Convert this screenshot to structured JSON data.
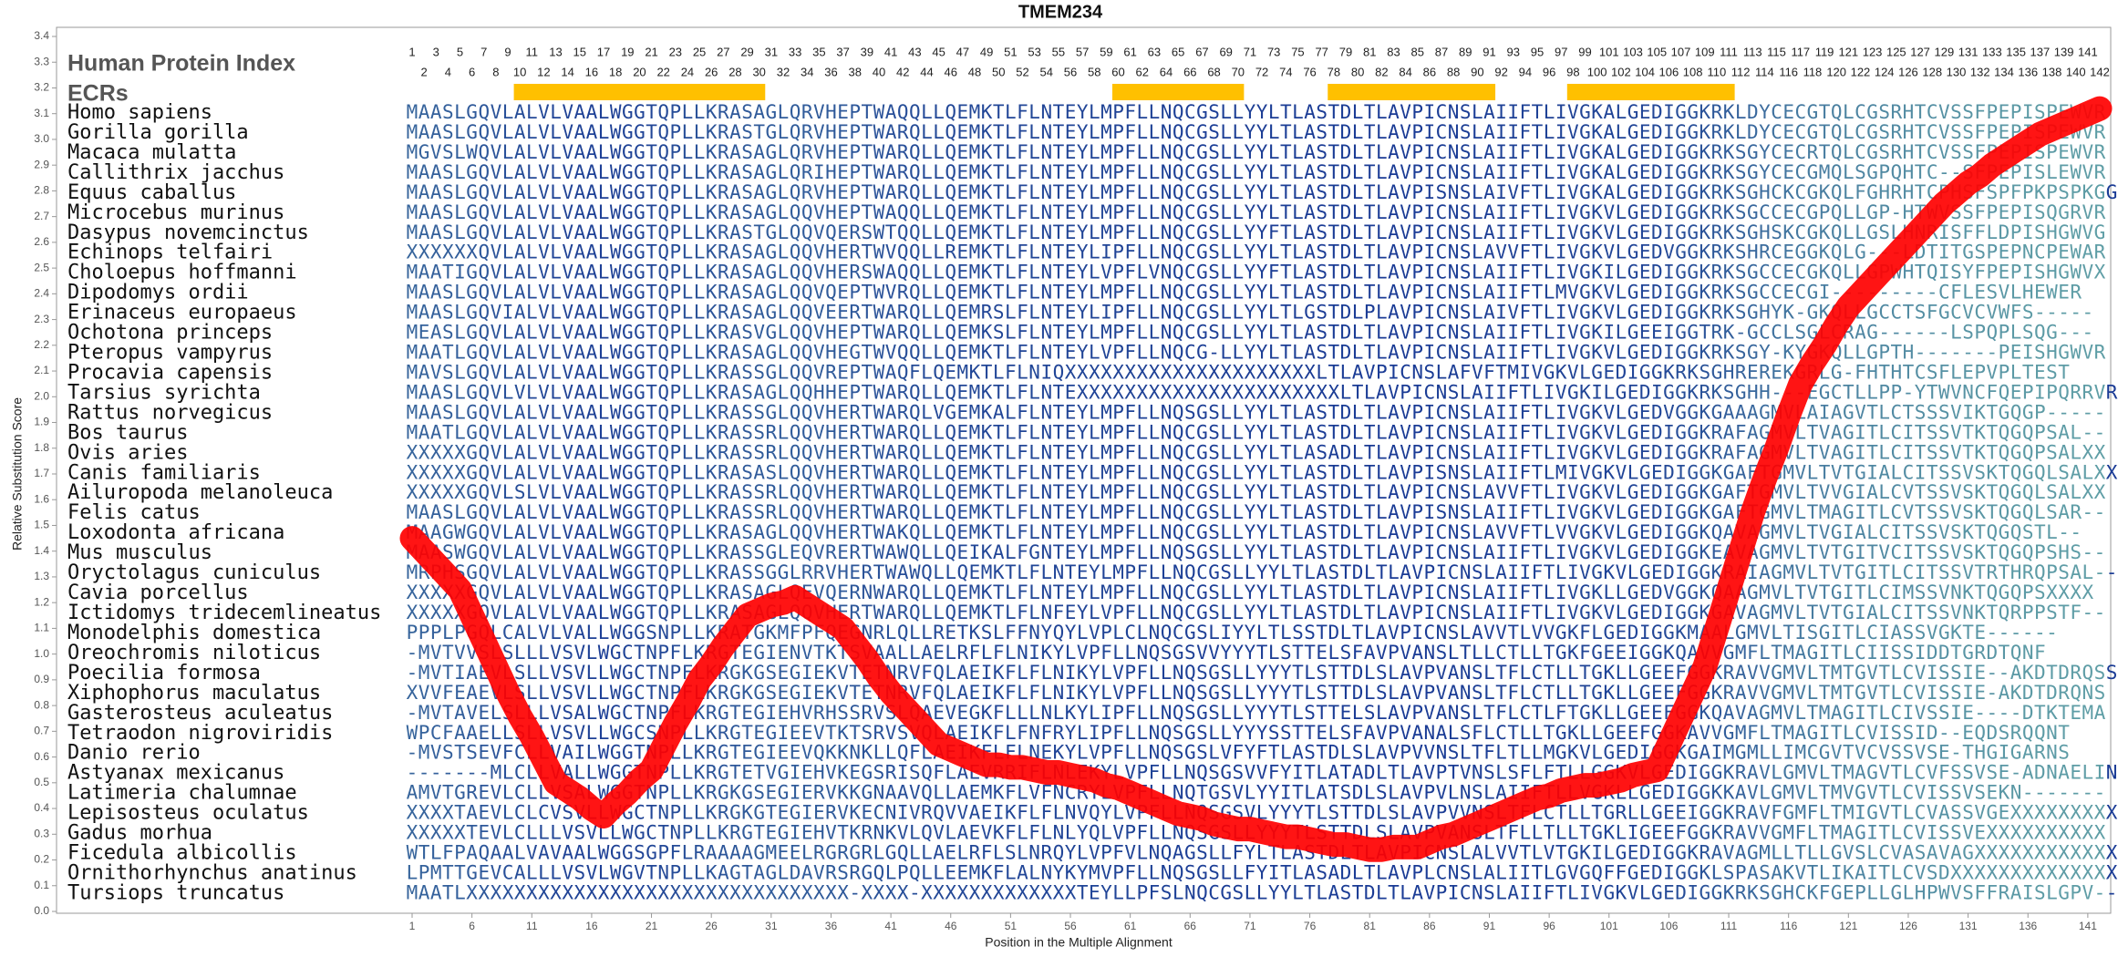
{
  "chart_data": {
    "type": "line",
    "title": "TMEM234",
    "x_label": "Position in the Multiple Alignment",
    "y_label": "Relative Substitution Score",
    "index_label": "Human Protein Index",
    "ecr_label": "ECRs",
    "color": "#ff0000",
    "ecr_color": "#ffc000",
    "residue_colors": [
      "#1a3b95",
      "#5f9ea6"
    ],
    "xlim": [
      1,
      142
    ],
    "ylim": [
      0,
      3.4
    ],
    "xticks": [
      1,
      6,
      11,
      16,
      21,
      26,
      31,
      36,
      41,
      46,
      51,
      56,
      61,
      66,
      71,
      76,
      81,
      86,
      91,
      96,
      101,
      106,
      111,
      116,
      121,
      126,
      131,
      136,
      141
    ],
    "yticks": [
      {
        "value": 0,
        "label": "0.0"
      },
      0.1,
      0.2,
      0.3,
      0.4,
      0.5,
      0.6,
      0.7,
      0.8,
      0.9,
      {
        "value": 1,
        "label": "1.0"
      },
      1.1,
      1.2,
      1.3,
      1.4,
      1.5,
      1.6,
      1.7,
      1.8,
      1.9,
      {
        "value": 2,
        "label": "2.0"
      },
      2.1,
      2.2,
      2.3,
      2.4,
      2.5,
      2.6,
      2.7,
      2.8,
      2.9,
      {
        "value": 3,
        "label": "3.0"
      },
      3.1,
      3.2,
      3.3,
      3.4
    ],
    "x": [
      1,
      2,
      3,
      4,
      5,
      6,
      7,
      8,
      9,
      10,
      11,
      12,
      13,
      14,
      15,
      16,
      17,
      18,
      19,
      20,
      21,
      22,
      23,
      24,
      25,
      26,
      27,
      28,
      29,
      30,
      31,
      32,
      33,
      34,
      35,
      36,
      37,
      38,
      39,
      40,
      41,
      42,
      43,
      44,
      45,
      46,
      47,
      48,
      49,
      50,
      51,
      52,
      53,
      54,
      55,
      56,
      57,
      58,
      59,
      60,
      61,
      62,
      63,
      64,
      65,
      66,
      67,
      68,
      69,
      70,
      71,
      72,
      73,
      74,
      75,
      76,
      77,
      78,
      79,
      80,
      81,
      82,
      83,
      84,
      85,
      86,
      87,
      88,
      89,
      90,
      91,
      92,
      93,
      94,
      95,
      96,
      97,
      98,
      99,
      100,
      101,
      102,
      103,
      104,
      105,
      106,
      107,
      108,
      109,
      110,
      111,
      112,
      113,
      114,
      115,
      116,
      117,
      118,
      119,
      120,
      121,
      122,
      123,
      124,
      125,
      126,
      127,
      128,
      129,
      130,
      131,
      132,
      133,
      134,
      135,
      136,
      137,
      138,
      139,
      140,
      141,
      142
    ],
    "values": [
      1.45,
      1.4,
      1.35,
      1.3,
      1.25,
      1.15,
      1.05,
      0.95,
      0.85,
      0.76,
      0.68,
      0.59,
      0.5,
      0.47,
      0.44,
      0.4,
      0.37,
      0.42,
      0.46,
      0.51,
      0.55,
      0.64,
      0.73,
      0.81,
      0.9,
      0.96,
      1.03,
      1.09,
      1.15,
      1.17,
      1.19,
      1.2,
      1.22,
      1.19,
      1.16,
      1.13,
      1.1,
      1.04,
      0.98,
      0.91,
      0.85,
      0.8,
      0.75,
      0.7,
      0.65,
      0.63,
      0.61,
      0.59,
      0.57,
      0.57,
      0.56,
      0.56,
      0.55,
      0.54,
      0.54,
      0.53,
      0.52,
      0.51,
      0.49,
      0.48,
      0.46,
      0.44,
      0.42,
      0.4,
      0.38,
      0.37,
      0.36,
      0.34,
      0.33,
      0.32,
      0.32,
      0.31,
      0.3,
      0.29,
      0.29,
      0.28,
      0.27,
      0.26,
      0.26,
      0.25,
      0.24,
      0.24,
      0.25,
      0.25,
      0.25,
      0.27,
      0.29,
      0.3,
      0.32,
      0.34,
      0.36,
      0.38,
      0.4,
      0.42,
      0.44,
      0.45,
      0.47,
      0.48,
      0.49,
      0.49,
      0.5,
      0.51,
      0.53,
      0.54,
      0.55,
      0.65,
      0.75,
      0.85,
      0.95,
      1.1,
      1.25,
      1.4,
      1.55,
      1.68,
      1.8,
      1.93,
      2.05,
      2.13,
      2.2,
      2.28,
      2.35,
      2.4,
      2.45,
      2.5,
      2.55,
      2.6,
      2.65,
      2.7,
      2.75,
      2.79,
      2.83,
      2.86,
      2.9,
      2.93,
      2.96,
      2.99,
      3.02,
      3.04,
      3.06,
      3.08,
      3.1,
      3.12
    ],
    "ecrs": [
      {
        "start": 10,
        "end": 30
      },
      {
        "start": 60,
        "end": 70
      },
      {
        "start": 78,
        "end": 91
      },
      {
        "start": 98,
        "end": 111
      }
    ],
    "species": [
      "Homo sapiens",
      "Gorilla gorilla",
      "Macaca mulatta",
      "Callithrix jacchus",
      "Equus caballus",
      "Microcebus murinus",
      "Dasypus novemcinctus",
      "Echinops telfairi",
      "Choloepus hoffmanni",
      "Dipodomys ordii",
      "Erinaceus europaeus",
      "Ochotona princeps",
      "Pteropus vampyrus",
      "Procavia capensis",
      "Tarsius syrichta",
      "Rattus norvegicus",
      "Bos taurus",
      "Ovis aries",
      "Canis familiaris",
      "Ailuropoda melanoleuca",
      "Felis catus",
      "Loxodonta africana",
      "Mus musculus",
      "Oryctolagus cuniculus",
      "Cavia porcellus",
      "Ictidomys tridecemlineatus",
      "Monodelphis domestica",
      "Oreochromis niloticus",
      "Poecilia formosa",
      "Xiphophorus maculatus",
      "Gasterosteus aculeatus",
      "Tetraodon nigroviridis",
      "Danio rerio",
      "Astyanax mexicanus",
      "Latimeria chalumnae",
      "Lepisosteus oculatus",
      "Gadus morhua",
      "Ficedula albicollis",
      "Ornithorhynchus anatinus",
      "Tursiops truncatus"
    ],
    "sequences": [
      "MAASLGQVLALVLVAALWGGTQPLLKRASAGLQRVHEPTWAQQLLQEMKTLFLNTEYLMPFLLNQCGSLLYYLTLASTDLTLAVPICNSLAIIFTLIVGKALGEDIGGKRKLDYCECGTQLCGSRHTCVSSFPEPISPEWVR",
      "MAASLGQVLALVLVAALWGGTQPLLKRASTGLQRVHEPTWARQLLQEMKTLFLNTEYLMPFLLNQCGSLLYYLTLASTDLTLAVPICNSLAIIFTLIVGKALGEDIGGKRKLDYCECGTQLCGSRHTCVSSFPEPISPEWVR",
      "MGVSLWQVLALVLVAALWGGTQPLLKRASAGLQRVHEPTWARQLLQEMKTLFLNTEYLMPFLLNQCGSLLYYLTLASTDLTLAVPICNSLAIIFTLIVGKALGEDIGGKRKSGYCECRTQLCGSRHTCVSSFPEPISPEWVR",
      "MAASLGQVLALVLVAALWGGTQPLLKRASAGLQRIHEPTWARQLLQEMKTLFLNTEYLMPFLLNQCGSLLYYLTLASTDLTLAVPICNSLAIIFTLIVGKALGEDIGGKRKSGYCECGMQLSGPQHTC--SFPEPISLEWVR",
      "MAASLGQVLALVLVAALWGGTQPLLKRASAGLQRVHEPTWARQLLQEMKTLFLNTEYLMPFLLNQCGSLLYYLTLASTDLTLAVPISNSLAIVFTLIVGKALGEDIGGKRKSGHCKCGKQLFGHRHTCPHSFSPFPKPSPKGGG",
      "MAASLGQVLALVLVAALWGGTQPLLKRASAGLQQVHEPTWAQQLLQEMKTLFLNTEYLMPFLLNQCGSLLYYLTLASTDLTLAVPICNSLAIIFTLIVGKVLGEDIGGKRKSGCCECGPQLLGP-HTWVSSFPEPISQGRVR",
      "MAASLGQVLALVLVAALWGGTQPLLKRASTGLQQVQERSWTQQLLQEMKTLFLNTEYLMPFLLNQCGSLLYYFTLASTDLTLAVPICNSLAIIFTLIVGKVLGEDIGGKRKSGHSKCGKQLLGSLHNRISFFLDPISHGWVG",
      "XXXXXXQVLALVLVAALWGGTQPLLKRASAGLQQVHERTWVQQLLREMKTLFLNTEYLIPFLLNQCGSLLYYLTLASTDLTLAVPICNSLAVVFTLIVGKVLGEDVGGKRKSHRCEGGKQLG---LDTITGSPEPNCPEWAR",
      "MAATIGQVLALVLVAALWGGTQPLLKRASAGLQQVHERSWAQQLLQEMKTLFLNTEYLVPFLVNQCGSLLYYFTLASTDLTLAVPICNSLAIIFTLIVGKILGEDIGGKRKSGCCECGKQLLGPWHTQISYFPEPISHGWVX",
      "MAASLGQVLALVLVAALWGGTQPLLKRASAGLQQVQEPTWVRQLLQEMKTLFLNTEYLMPFLLNQCGSLLYYLTLASTDLTLAVPICNSLAIIFTLMVGKVLGEDIGGKRKSGCCECGI---------CFLESVLHEWER",
      "MAASLGQVIALVLVAALWGGTQPLLKRASAGLQQVEERTWARQLLQEMRSLFLNTEYLIPFLLNQCGSLLYYLTLGSTDLPLAVPICNSLAIVFTLIVGKVLGEDIGGKRKSGHYK-GKQLLGCCTSFGCVCVWFS-----",
      "MEASLGQVLALVLVAALWGGTQPLLKRASVGLQQVHEPTWARQLLQEMKSLFLNTEYLMPFLLNQCGSLLYYLTLASTDLTLAVPICNSLAIIFTLIVGKILGEEIGGTRK-GCCLSGLCRAG------LSPQPLSQG---",
      "MAATLGQVLALVLVAALWGGTQPLLKRASAGLQQVHEGTWVQQLLQEMKTLFLNTEYLVPFLLNQCG-LLYYLTLASTDLTLAVPICNSLAIIFTLIVGKVLGEDIGGKRKSGY-KYGKQLLGPTH-------PEISHGWVR",
      "MAVSLGQVLALVLVAALWGGTQPLLKRASSGLQQVREPTWAQFLQEMKTLFLNIQXXXXXXXXXXXXXXXXXXXXXLTLAVPICNSLAFVFTMIVGKVLGEDIGGKRKSGHREREKGRLG-FHTHTCSFLEPVPLTEST",
      "MAASLGQVLVLVLVAALWGGTQPLLKRASAGLQQHHEPTWARQLLQEMKTLFLNTEXXXXXXXXXXXXXXXXXXXXXXLTLAVPICNSLAIIFTLIVGKILGEDIGGKRKSGHH---EGCTLLPP-YTWVNCFQEPIPQRRVR",
      "MAASLGQVLALVLVAALWGGTQPLLKRASSGLQQVHERTWARQLVGEMKALFLNTEYLMPFLLNQSGSLLYYLTLASTDLTLAVPICNSLAIIFTLIVGKVLGEDVGGKGAAAGMVLAIAGVTLCTSSSVIKTGQGP-----",
      "MAATLGQVLALVLVAALWGGTQPLLKRASSRLQQVHERTWARQLLQEMKTLFLNTEYLMPFLLNQCGSLLYYLTLASTDLTLAVPICNSLAIIFTLIVGKVLGEDIGGKRAFAGMVLTVAGITLCITSSVTKTQGQPSAL--",
      "XXXXXGQVLALVLVAALWGGTQPLLKRASSRLQQVHERTWARQLLQEMKTLFLNTEYLMPFLLNQCGSLLYYLTLASADLTLAVPICNSLAIIFTLIVGKVLGEDIGGKRAFAGMVLTVAGITLCITSSVTKTQGQPSALXX",
      "XXXXXGQVLALVLVAALWGGTQPLLKRASASLQQVHERTWARQLLQEMKTLFLNTEYLMPFLLNQCGSLLYYLTLASTDLTLAVPISNSLAIIFTLMIVGKVLGEDIGGKGAFTGMVLTVTGIALCITSSVSKTQGQLSALXX",
      "XXXXXGQVLSLVLVAALWGGTQPLLKRASSRLQQVHERTWARQLLQEMKTLFLNTEYLMPFLLNQCGSLLYYLTLASTDLTLAVPICNSLAVVFTLIVGKVLGEDIGGKGAFTGMVLTVVGIALCVTSSVSKTQGQLSALXX",
      "MAASLGQVLALVLVAALWGGTQPLLKRASSRLQQVHERTWARQLLQEMKTLFLNTEYLMPFLLNQCGSLLYYLTLASTDLTLAVPISNSLAIIFTLIVGKVLGEDIGGKGAFTGMVLTMAGITLCVTSSVSKTQGQLSAR--",
      "MAAGWGQVLALVLVAALWGGTQPLLKRASAGLQQVHERTWAKQLLQEMKTLFLNTEYLMPFLLNQCGSLLYYLTLASTDLTLAVPICNSLAVVFTLVVGKVLGEDIGGKQAVAGMVLTVGIALCITSSVSKTQGQSTL--",
      "MAASWGQVLALVLVAALWGGTQPLLKRASSGLEQVRERTWAWQLLQEIKALFGNTEYLMPFLLNQSGSLLYYLTLASTDLTLAVPICNSLAIIFTLIVGKVLGEDIGGKEAVAGMVLTVTGITVCITSSVSKTQGQPSHS--",
      "MRPHSGQVLALVLVAALWGGTQPLLKRASSGGLRRVHERTWAWQLLQEMKTLFLNTEYLMPFLLNQCGSLLYYLTLASTDLTLAVPICNSLAIIFTLIVGKVLGEDIGGKRAIAGMVLTVTGITLCITSSVTRTHRQPSAL--",
      "XXXXXGQVLALVLVAALWGGTQPLLKRASAGLQEVQERNWARQLLQEMKTLFLNTEYLMPFLLNQCGSLLYYLTLASTDLTLAVPICNSLAIIFTLIVGKLLGEDVGGKQAAGMVLTVTGITLCIMSSVNKTQGQPSXXXX",
      "XXXXXGQVLALVLVAALWGGTQPLLKRASAGLQQVHERTWARQLLQEMKTLFLNFEYLVPFLLNQCGSLLYYLTLASTDLTLAVPICNSLAIIFTLIVGKVLGEDIGGKGAVAGMVLTVTGIALCITSSVNKTQRPPSTF--",
      "PPPLPGQLCALVLVALLWGGSNPLLKRATGKMFPFQEGNRLQLLRETKSLFFNYQYLVPLCLNQCGSLIYYLTLSSTDLTLAVPICNSLAVVTLVVGKFLGEDIGGKMAALGMVLTISGITLCIASSVGKTE------",
      "-MVTVVSLSLLLVSVLWGCTNPFLKRGTEGIENVTKTSVAALLAELRFLFLNIKYLVPFLLNQSGSVVYYYTLSTTELSFAVPVANSLTLLCTLLTGKFGEEIGGKQAVVGMFLTMAGITLCIISSIDDTGRDTQNF",
      "-MVTIAEVLSLLVSVLLWGCTNPFLKRGKGSEGIEKVTETNRVFQLAEIKFLFLNIKYLVPFLLNQSGSLLYYYTLSTTDLSLAVPVANSLTFLCTLLTGKLLGEEFGGKRAVVGMVLTMTGVTLCVISSIE--AKDTDRQSS",
      "XVVFEAEVLSLLVSVLLWGCTNPFLKRGKGSEGIEKVTETNRVFQLAEIKFLFLNIKYLVPFLLNQSGSLLYYYTLSTTDLSLAVPVANSLTFLCTLLTGKLLGEEFGGKRAVVGMVLTMTGVTLCVISSIE-AKDTDRQNS",
      "-MVTAVELSLLLVSALWGCTNPFLKRGTEGIEHVRHSSRVSLQAEVEGKFLLLNLKYLIPFLLNQSGSLLYYYTLSTTELSLAVPVANSLTFLCTLFTGKLLGEEFGGKQAVAGMVLTMAGITLCIVSSIE----DTKTEMA",
      "WPCFAAELLSLLVSVLLWGCSNPLLKRGTEGIEEVTKTSRVSVQLAEIKFLFNFRYLIPFLLNQSGSLLYYYSSTTELSFAVPVANALSFLCTLLTGKLLGEEFGGKAVVGMFLTMAGITLCVISSID--EQDSRQQNT",
      "-MVSTSEVFCLLVAILWGGTNPLLKRGTEGIEEVQKKNKLLQFLAEIKFLFLNEKYLVPFLLNQSGSLVFYFTLASTDLSLAVPVVNSLTFLTLLMGKVLGEDIGGKGAIMGMLLIMCGVTVCVSSVSE-THGIGARNS",
      "-------MLCLLVALLWGGTNPLLKRGTETVGIEHVKEGSRISQFLAEVRRIFLNLEKYLVPFLLNQSGSVVFYITLATADLTLAVPTVNSLSFLFTLLGGKVLGEDIGGKRAVLGMVLTMAGVTLCVFSSVSE-ADNAELINT",
      "AMVTGREVLCLLVSALWGGTNPLLKRGKGSEGIERVKKGNAAVQLLAEMKFLVFNCRYLVPFLLNQTGSVLYYITLATSDLSLAVPVLNSLAIIFTLLVGKLLGEDIGGKKAVLGMVLTMVGVTLCVISSVSEKN-------",
      "XXXXTAEVLCLCVSVLLWGCTNPLLKRGKGTEGIERVKECNIVRQVVAEIKFLFLNVQYLVPFLLNQSGSVLYYYTLSTTDLSLAVPVVNSLTFLCTLLTGRLLGEEIGGKRAVFGMFLTMIGVTLCVASSVGEXXXXXXXXXX",
      "XXXXXTEVLCLLLVSVLLWGCTNPLLKRGTEGIEHVTKRNKVLQVLAEVKFLFLNLYQLVPFLLNQSGSLLYYYTLSTTDLSLAVPVANSLTFLLTLLTGKLIGEEFGGKRAVVGMFLTMAGITLCVISSVEXXXXXXXXXX",
      "WTLFPAQAALVAVAALWGGSGPFLRAAAAGMEELRGRGRLGQLLAELRFLSLNRQYLVPFVLNQAGSLLFYLTLASTDLTLAVPICNSLALVVTLVTGKILGEDIGGKRAVAGMLLTLLGVSLCVASAVAGXXXXXXXXXXXX",
      "LPMTTGEVCALLLVSVLWGVTNPLLKAGTAGLDAVRSRGQLPQLLEEMKFLALNYKYMVPFLLNQSGSLLFYITLASADLTLAVPLCNSLALIITLGVGQFFGEDIGGKLSPASAKVTLIKAITLCVSDXXXXXXXXXXXXXX",
      "MAATLXXXXXXXXXXXXXXXXXXXXXXXXXXXXXXXX-XXXX-XXXXXXXXXXXXXTEYLLPFSLNQCGSLLYYLTLASTDLTLAVPICNSLAIIFTLIVGKVLGEDIGGKRKSGHCKFGEPLLGLHPWVSFFRAISLGPV--R"
    ]
  }
}
